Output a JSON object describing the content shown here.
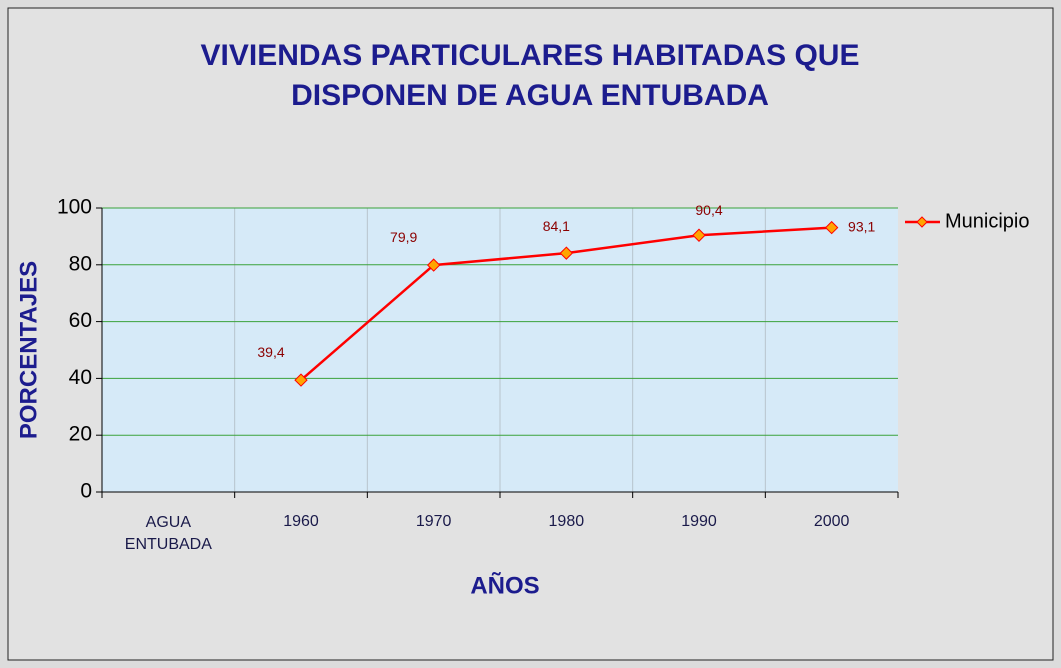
{
  "chart_data": {
    "type": "line",
    "title": "VIVIENDAS PARTICULARES HABITADAS QUE DISPONEN DE AGUA ENTUBADA",
    "x_label": "AÑOS",
    "y_label": "PORCENTAJES",
    "categories": [
      "AGUA ENTUBADA",
      "1960",
      "1970",
      "1980",
      "1990",
      "2000"
    ],
    "series": [
      {
        "name": "Municipio",
        "color": "#ff0000",
        "marker_color": "#ffa500",
        "values": [
          null,
          39.4,
          79.9,
          84.1,
          90.4,
          93.1
        ],
        "value_labels": [
          null,
          "39,4",
          "79,9",
          "84,1",
          "90,4",
          "93,1"
        ]
      }
    ],
    "ylim": [
      0,
      100
    ],
    "yticks": [
      0,
      20,
      40,
      60,
      80,
      100
    ],
    "grid": true,
    "legend": "right"
  }
}
